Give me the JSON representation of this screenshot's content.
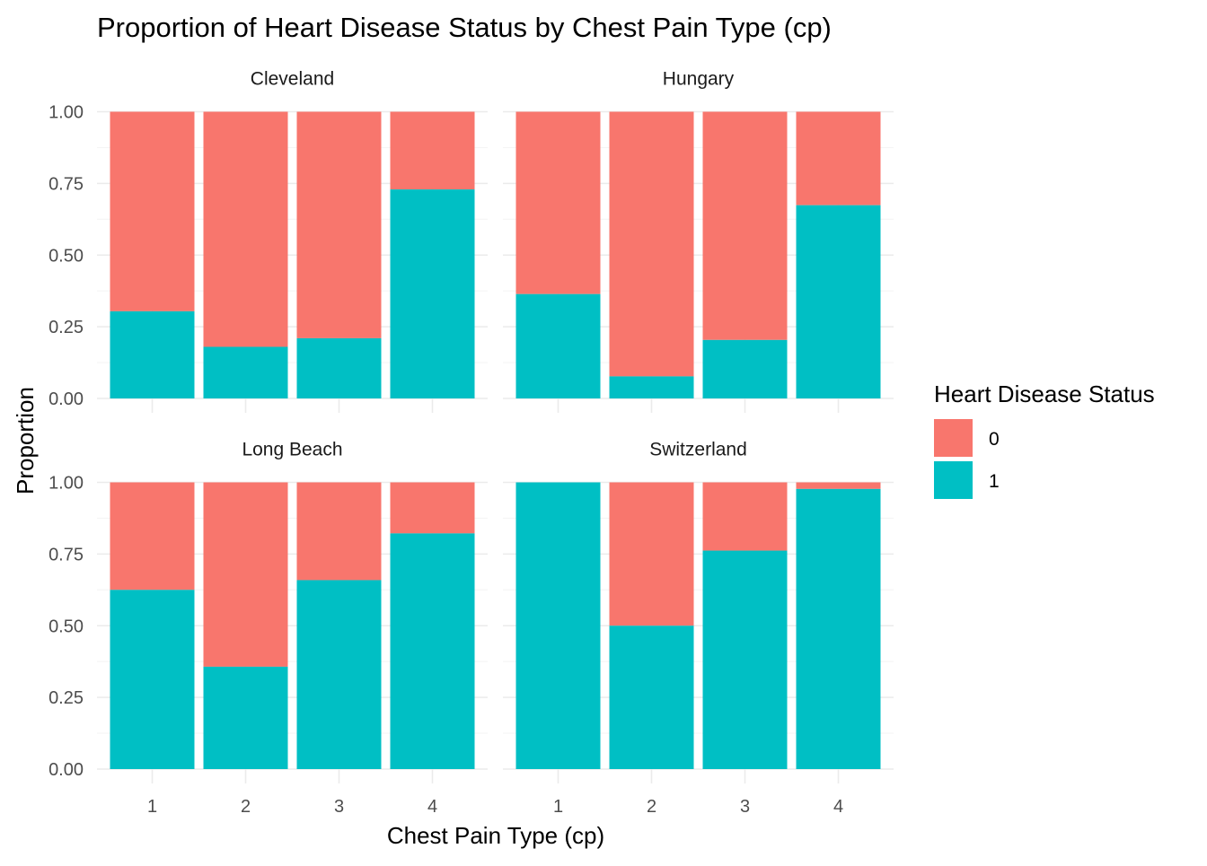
{
  "chart_data": {
    "type": "bar",
    "stacked": true,
    "position": "fill",
    "title": "Proportion of Heart Disease Status by Chest Pain Type (cp)",
    "xlabel": "Chest Pain Type (cp)",
    "ylabel": "Proportion",
    "categories": [
      "1",
      "2",
      "3",
      "4"
    ],
    "ylim": [
      0,
      1
    ],
    "yticks": [
      "0.00",
      "0.25",
      "0.50",
      "0.75",
      "1.00"
    ],
    "grid": true,
    "legend": {
      "title": "Heart Disease Status",
      "placement": "right",
      "entries": [
        {
          "label": "0",
          "color": "#F8766D"
        },
        {
          "label": "1",
          "color": "#00BFC4"
        }
      ]
    },
    "facets": [
      {
        "name": "Cleveland",
        "series": [
          {
            "name": "0",
            "values": [
              0.696,
              0.82,
              0.79,
              0.271
            ]
          },
          {
            "name": "1",
            "values": [
              0.304,
              0.18,
              0.21,
              0.729
            ]
          }
        ]
      },
      {
        "name": "Hungary",
        "series": [
          {
            "name": "0",
            "values": [
              0.636,
              0.923,
              0.796,
              0.326
            ]
          },
          {
            "name": "1",
            "values": [
              0.364,
              0.077,
              0.204,
              0.674
            ]
          }
        ]
      },
      {
        "name": "Long Beach",
        "series": [
          {
            "name": "0",
            "values": [
              0.375,
              0.643,
              0.341,
              0.178
            ]
          },
          {
            "name": "1",
            "values": [
              0.625,
              0.357,
              0.659,
              0.822
            ]
          }
        ]
      },
      {
        "name": "Switzerland",
        "series": [
          {
            "name": "0",
            "values": [
              0.0,
              0.5,
              0.238,
              0.023
            ]
          },
          {
            "name": "1",
            "values": [
              1.0,
              0.5,
              0.762,
              0.977
            ]
          }
        ]
      }
    ]
  }
}
